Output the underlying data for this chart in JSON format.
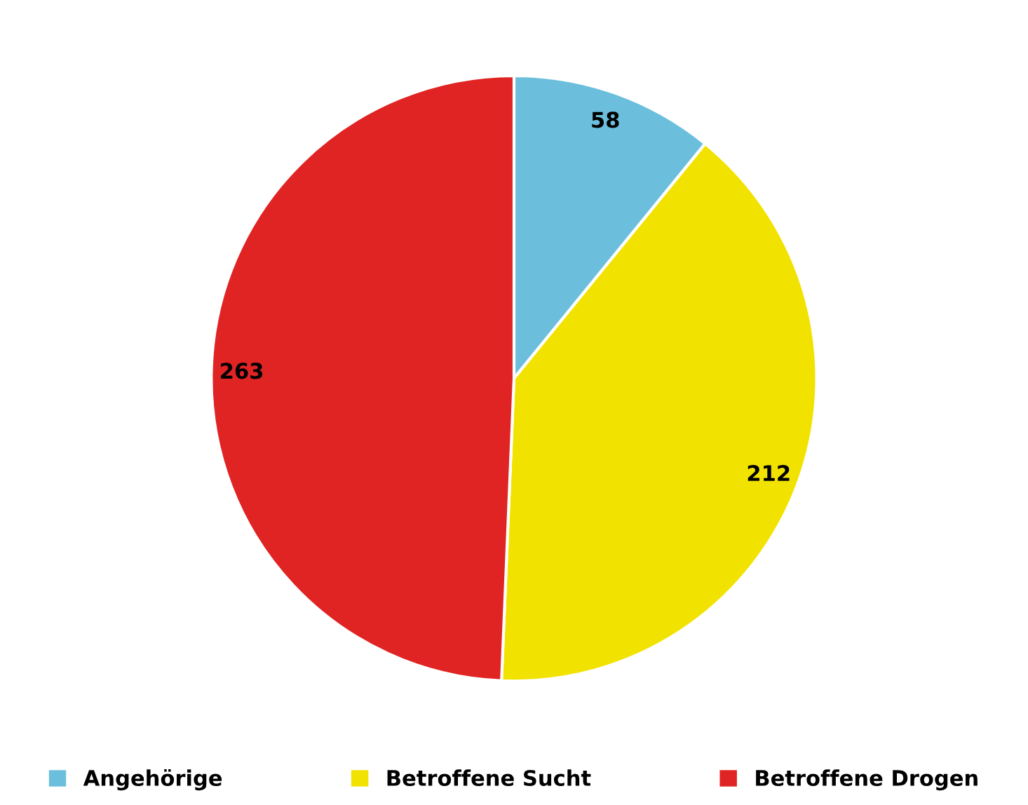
{
  "chart_data": {
    "type": "pie",
    "categories": [
      "Angehörige",
      "Betroffene Sucht",
      "Betroffene Drogen"
    ],
    "values": [
      58,
      212,
      263
    ],
    "colors": [
      "#6cbfdc",
      "#f2e200",
      "#e02323"
    ],
    "data_labels": true,
    "legend": "bottom"
  }
}
